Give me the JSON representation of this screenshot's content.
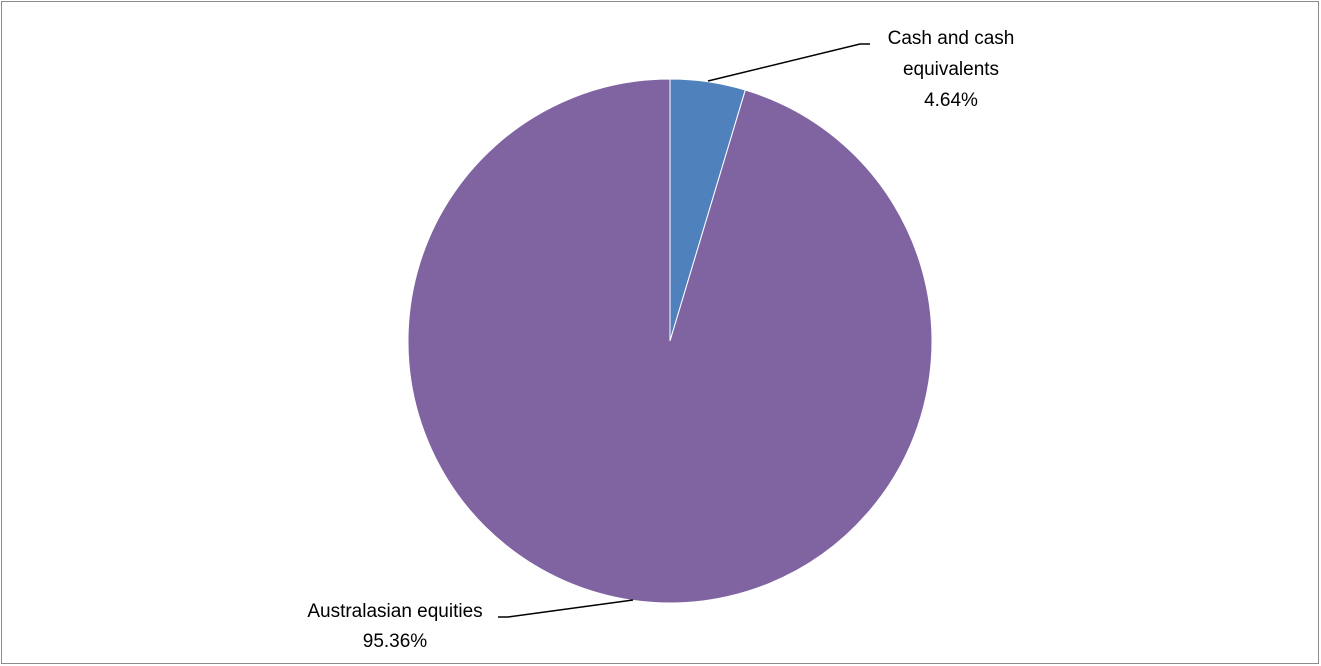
{
  "chart_data": {
    "type": "pie",
    "title": "",
    "slices": [
      {
        "label_lines": [
          "Cash and cash",
          "equivalents"
        ],
        "percent_label": "4.64%",
        "value": 4.64,
        "color": "#4f81bd"
      },
      {
        "label_lines": [
          "Australasian equities"
        ],
        "percent_label": "95.36%",
        "value": 95.36,
        "color": "#8064a2"
      }
    ],
    "start_angle": "12 o'clock, clockwise",
    "legend": "none",
    "data_labels": "outside with leader lines"
  }
}
